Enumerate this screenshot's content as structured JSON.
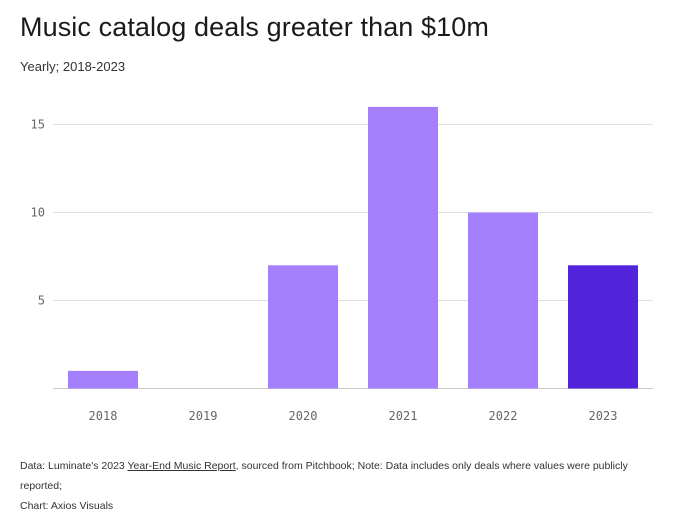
{
  "header": {
    "title": "Music catalog deals greater than $10m",
    "subtitle": "Yearly; 2018-2023"
  },
  "footer": {
    "data_prefix": "Data: Luminate's 2023 ",
    "report_link": "Year-End Music Report",
    "data_suffix": ", sourced from Pitchbook; Note: Data includes only deals where values were publicly reported;",
    "credit": "Chart: Axios Visuals"
  },
  "colors": {
    "bar": "#a480ff",
    "highlight": "#5224dc",
    "grid": "#e0e0e0",
    "baseline": "#c8c8c8"
  },
  "chart_data": {
    "type": "bar",
    "title": "Music catalog deals greater than $10m",
    "subtitle": "Yearly; 2018-2023",
    "categories": [
      "2018",
      "2019",
      "2020",
      "2021",
      "2022",
      "2023"
    ],
    "values": [
      1,
      0,
      7,
      16,
      10,
      7
    ],
    "highlighted_category": "2023",
    "yticks": [
      5,
      10,
      15
    ],
    "ylim": [
      0,
      16
    ],
    "grid": true,
    "legend": "none"
  }
}
